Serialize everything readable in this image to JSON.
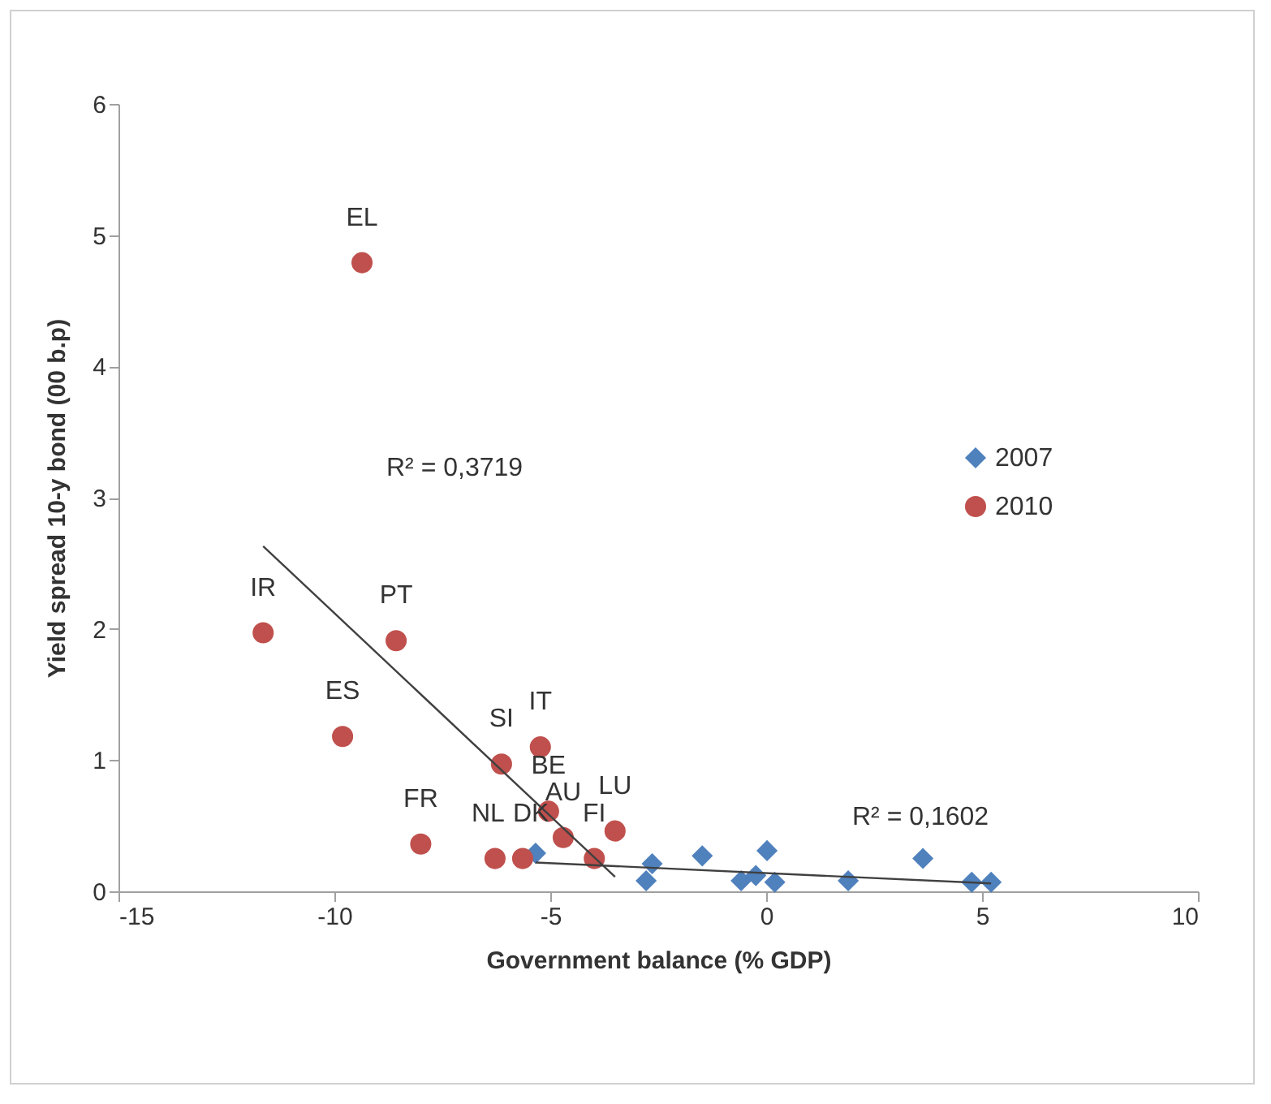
{
  "chart_data": {
    "type": "scatter",
    "xlabel": "Government balance (% GDP)",
    "ylabel": "Yield spread 10-y bond (00 b.p)",
    "xlim": [
      -15,
      10
    ],
    "xticks": [
      -15,
      -10,
      -5,
      0,
      5,
      10
    ],
    "ylim": [
      0,
      6
    ],
    "yticks": [
      0,
      1,
      2,
      3,
      4,
      5,
      6
    ],
    "grid": false,
    "legend": "right",
    "series": [
      {
        "name": "2007",
        "color": "#4f81bd",
        "marker": "diamond",
        "x": [
          -5.34,
          -2.64,
          -2.78,
          -1.48,
          -0.58,
          -0.24,
          0.02,
          0.2,
          1.9,
          3.63,
          4.76,
          5.21
        ],
        "values": [
          0.29,
          0.21,
          0.08,
          0.27,
          0.08,
          0.12,
          0.31,
          0.07,
          0.08,
          0.25,
          0.07,
          0.07
        ]
      },
      {
        "name": "2010",
        "color": "#c0504d",
        "marker": "circle",
        "x": [
          -9.36,
          -11.65,
          -8.57,
          -9.81,
          -6.13,
          -5.23,
          -8.0,
          -6.28,
          -5.64,
          -5.04,
          -4.7,
          -3.98,
          -3.5
        ],
        "values": [
          4.79,
          1.97,
          1.91,
          1.18,
          0.97,
          1.1,
          0.36,
          0.25,
          0.25,
          0.61,
          0.41,
          0.25,
          0.46
        ]
      },
      {
        "type": "line",
        "color": "#404040",
        "x": [
          -11.65,
          -3.5
        ],
        "values": [
          2.63,
          0.11
        ]
      },
      {
        "type": "line",
        "color": "#404040",
        "x": [
          -5.34,
          5.21
        ],
        "values": [
          0.22,
          0.06
        ]
      }
    ],
    "annotations": [
      {
        "text": "EL",
        "x": -9.36,
        "y": 4.79
      },
      {
        "text": "IR",
        "x": -11.65,
        "y": 1.97
      },
      {
        "text": "PT",
        "x": -8.57,
        "y": 1.91
      },
      {
        "text": "ES",
        "x": -9.81,
        "y": 1.18
      },
      {
        "text": "SI",
        "x": -6.13,
        "y": 0.97
      },
      {
        "text": "IT",
        "x": -5.23,
        "y": 1.1
      },
      {
        "text": "FR",
        "x": -8.0,
        "y": 0.36
      },
      {
        "text": "NL",
        "x": -6.28,
        "y": 0.25
      },
      {
        "text": "DK",
        "x": -5.64,
        "y": 0.25
      },
      {
        "text": "BE",
        "x": -5.04,
        "y": 0.61
      },
      {
        "text": "AU",
        "x": -4.7,
        "y": 0.41
      },
      {
        "text": "FI",
        "x": -3.98,
        "y": 0.25
      },
      {
        "text": "LU",
        "x": -3.5,
        "y": 0.46
      },
      "R² = 0,3719",
      "R² = 0,1602"
    ]
  }
}
